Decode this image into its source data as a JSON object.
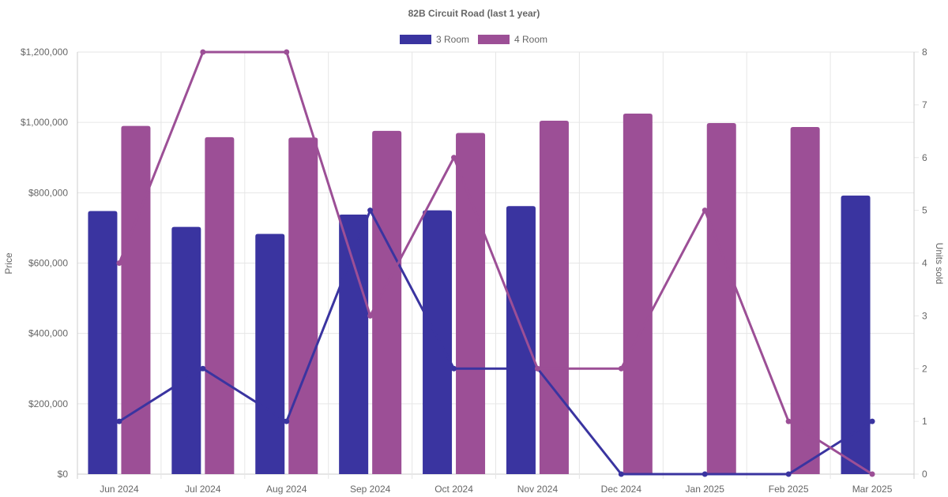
{
  "chart_data": {
    "type": "bar",
    "title": "82B Circuit Road (last 1 year)",
    "categories": [
      "Jun 2024",
      "Jul 2024",
      "Aug 2024",
      "Sep 2024",
      "Oct 2024",
      "Nov 2024",
      "Dec 2024",
      "Jan 2025",
      "Feb 2025",
      "Mar 2025"
    ],
    "ylabel": "Price",
    "y2label": "Units sold",
    "ylim": [
      0,
      1200000
    ],
    "y2lim": [
      0,
      8
    ],
    "yticks": [
      "$0",
      "$200,000",
      "$400,000",
      "$600,000",
      "$800,000",
      "$1,000,000",
      "$1,200,000"
    ],
    "y2ticks": [
      "0",
      "1",
      "2",
      "3",
      "4",
      "5",
      "6",
      "7",
      "8"
    ],
    "grid": true,
    "legend_position": "top",
    "series": [
      {
        "name": "3 Room",
        "color": "#3a34a0",
        "price": [
          748000,
          703000,
          683000,
          738000,
          750000,
          762000,
          null,
          null,
          null,
          792000
        ],
        "units_sold": [
          1,
          2,
          1,
          5,
          2,
          2,
          0,
          0,
          0,
          1
        ]
      },
      {
        "name": "4 Room",
        "color": "#9c4f96",
        "price": [
          990000,
          958000,
          957000,
          976000,
          970000,
          1005000,
          1025000,
          998000,
          987000,
          null
        ],
        "units_sold": [
          4,
          8,
          8,
          3,
          6,
          2,
          2,
          5,
          1,
          0
        ]
      }
    ]
  }
}
